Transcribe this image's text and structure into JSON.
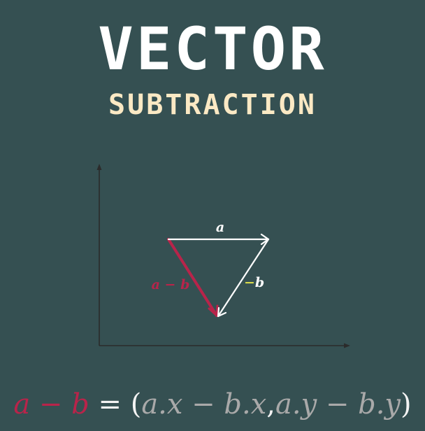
{
  "title": "VECTOR",
  "subtitle": "SUBTRACTION",
  "diagram": {
    "labels": {
      "a": "a",
      "neg_b": "−b",
      "neg_b_sign": "−",
      "neg_b_letter": "b",
      "a_minus_b": "a − b"
    },
    "colors": {
      "background": "#355052",
      "axis": "#2b2b2b",
      "vector": "#ffffff",
      "result": "#b8244a",
      "sign_accent": "#d6d84b"
    }
  },
  "formula": {
    "lhs": "a − b",
    "equals": " = (",
    "term1": "a.x − b.x",
    "comma": ",",
    "term2": "a.y − b.y",
    "close": ")"
  }
}
